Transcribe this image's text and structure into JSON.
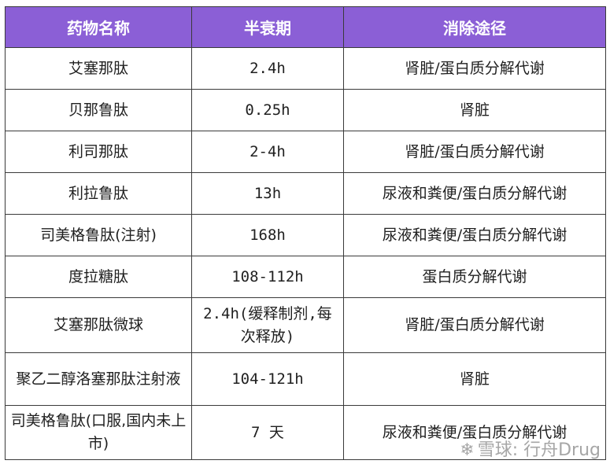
{
  "table": {
    "headers": [
      "药物名称",
      "半衰期",
      "消除途径"
    ],
    "rows": [
      {
        "name": "艾塞那肽",
        "half_life": "2.4h",
        "route": "肾脏/蛋白质分解代谢"
      },
      {
        "name": "贝那鲁肽",
        "half_life": "0.25h",
        "route": "肾脏"
      },
      {
        "name": "利司那肽",
        "half_life": "2-4h",
        "route": "肾脏/蛋白质分解代谢"
      },
      {
        "name": "利拉鲁肽",
        "half_life": "13h",
        "route": "尿液和粪便/蛋白质分解代谢"
      },
      {
        "name": "司美格鲁肽(注射)",
        "half_life": "168h",
        "route": "尿液和粪便/蛋白质分解代谢"
      },
      {
        "name": "度拉糖肽",
        "half_life": "108-112h",
        "route": "蛋白质分解代谢"
      },
      {
        "name": "艾塞那肽微球",
        "half_life": "2.4h(缓释制剂,每次释放)",
        "route": "肾脏/蛋白质分解代谢"
      },
      {
        "name": "聚乙二醇洛塞那肽注射液",
        "half_life": "104-121h",
        "route": "肾脏"
      },
      {
        "name": "司美格鲁肽(口服,国内未上市)",
        "half_life": "7 天",
        "route": "尿液和粪便/蛋白质分解代谢"
      }
    ]
  },
  "watermark": {
    "text": "雪球: 行舟Drug",
    "icon": "snowball-logo-icon"
  },
  "colors": {
    "header_bg": "#8b5fd6",
    "header_text": "#ffffff",
    "border": "#3a3a3a"
  }
}
